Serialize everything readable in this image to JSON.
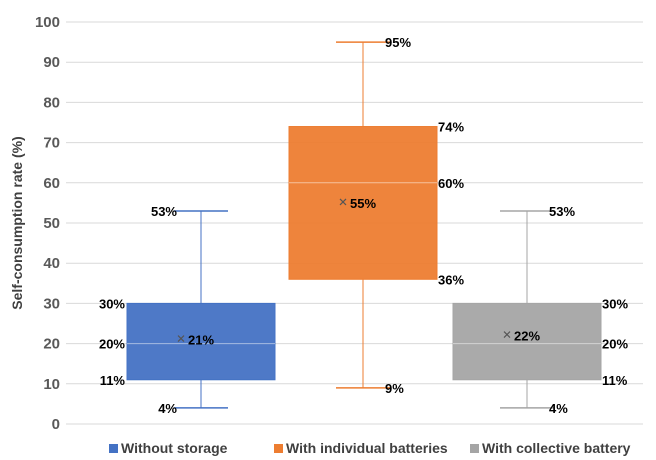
{
  "chart_data": {
    "type": "box",
    "ylabel": "Self-consumption rate (%)",
    "ylim": [
      0,
      100
    ],
    "yticks": [
      0,
      10,
      20,
      30,
      40,
      50,
      60,
      70,
      80,
      90,
      100
    ],
    "grid": true,
    "legend_position": "bottom",
    "series": [
      {
        "name": "Without storage",
        "color": "#4472C4",
        "min": 4,
        "q1": 11,
        "median": 20,
        "q3": 30,
        "max": 53,
        "mean": 21,
        "labels": {
          "min": "4%",
          "q1": "11%",
          "median": "20%",
          "q3": "30%",
          "max": "53%",
          "mean": "21%"
        }
      },
      {
        "name": "With individual batteries",
        "color": "#ED7D31",
        "min": 9,
        "q1": 36,
        "median": 60,
        "q3": 74,
        "max": 95,
        "mean": 55,
        "labels": {
          "min": "9%",
          "q1": "36%",
          "median": "60%",
          "q3": "74%",
          "max": "95%",
          "mean": "55%"
        }
      },
      {
        "name": "With collective battery",
        "color": "#A5A5A5",
        "min": 4,
        "q1": 11,
        "median": 20,
        "q3": 30,
        "max": 53,
        "mean": 22,
        "labels": {
          "min": "4%",
          "q1": "11%",
          "median": "20%",
          "q3": "30%",
          "max": "53%",
          "mean": "22%"
        }
      }
    ]
  }
}
